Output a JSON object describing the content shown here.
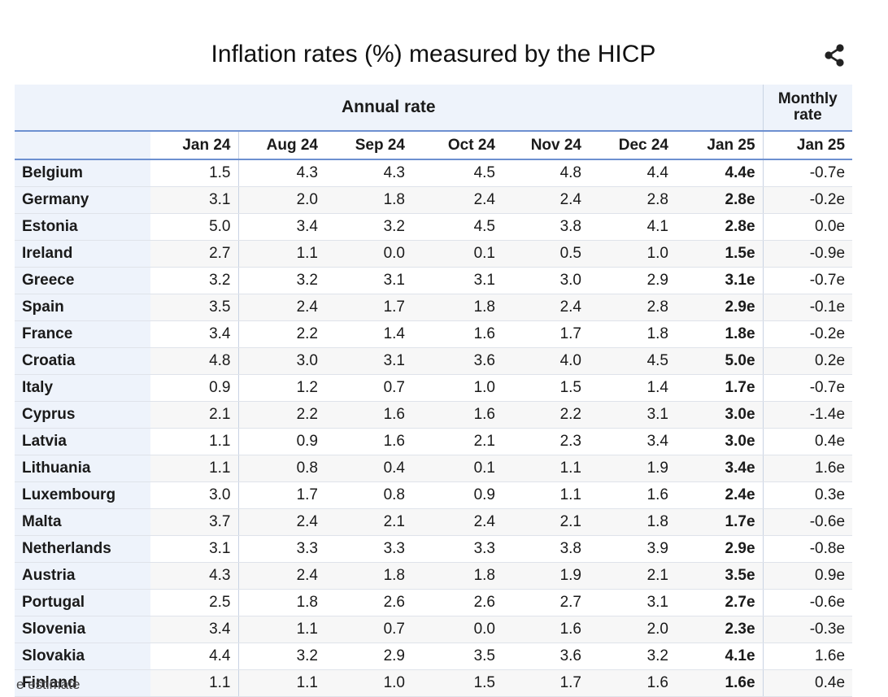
{
  "chart_data": {
    "type": "table",
    "title": "Inflation rates (%) measured by the HICP",
    "group_headers": {
      "annual": "Annual rate",
      "monthly": "Monthly rate"
    },
    "columns": [
      "Jan 24",
      "Aug 24",
      "Sep 24",
      "Oct 24",
      "Nov 24",
      "Dec 24",
      "Jan 25",
      "Jan 25"
    ],
    "rows": [
      {
        "country": "Belgium",
        "values": [
          "1.5",
          "4.3",
          "4.3",
          "4.5",
          "4.8",
          "4.4",
          "4.4e",
          "-0.7e"
        ]
      },
      {
        "country": "Germany",
        "values": [
          "3.1",
          "2.0",
          "1.8",
          "2.4",
          "2.4",
          "2.8",
          "2.8e",
          "-0.2e"
        ]
      },
      {
        "country": "Estonia",
        "values": [
          "5.0",
          "3.4",
          "3.2",
          "4.5",
          "3.8",
          "4.1",
          "2.8e",
          "0.0e"
        ]
      },
      {
        "country": "Ireland",
        "values": [
          "2.7",
          "1.1",
          "0.0",
          "0.1",
          "0.5",
          "1.0",
          "1.5e",
          "-0.9e"
        ]
      },
      {
        "country": "Greece",
        "values": [
          "3.2",
          "3.2",
          "3.1",
          "3.1",
          "3.0",
          "2.9",
          "3.1e",
          "-0.7e"
        ]
      },
      {
        "country": "Spain",
        "values": [
          "3.5",
          "2.4",
          "1.7",
          "1.8",
          "2.4",
          "2.8",
          "2.9e",
          "-0.1e"
        ]
      },
      {
        "country": "France",
        "values": [
          "3.4",
          "2.2",
          "1.4",
          "1.6",
          "1.7",
          "1.8",
          "1.8e",
          "-0.2e"
        ]
      },
      {
        "country": "Croatia",
        "values": [
          "4.8",
          "3.0",
          "3.1",
          "3.6",
          "4.0",
          "4.5",
          "5.0e",
          "0.2e"
        ]
      },
      {
        "country": "Italy",
        "values": [
          "0.9",
          "1.2",
          "0.7",
          "1.0",
          "1.5",
          "1.4",
          "1.7e",
          "-0.7e"
        ]
      },
      {
        "country": "Cyprus",
        "values": [
          "2.1",
          "2.2",
          "1.6",
          "1.6",
          "2.2",
          "3.1",
          "3.0e",
          "-1.4e"
        ]
      },
      {
        "country": "Latvia",
        "values": [
          "1.1",
          "0.9",
          "1.6",
          "2.1",
          "2.3",
          "3.4",
          "3.0e",
          "0.4e"
        ]
      },
      {
        "country": "Lithuania",
        "values": [
          "1.1",
          "0.8",
          "0.4",
          "0.1",
          "1.1",
          "1.9",
          "3.4e",
          "1.6e"
        ]
      },
      {
        "country": "Luxembourg",
        "values": [
          "3.0",
          "1.7",
          "0.8",
          "0.9",
          "1.1",
          "1.6",
          "2.4e",
          "0.3e"
        ]
      },
      {
        "country": "Malta",
        "values": [
          "3.7",
          "2.4",
          "2.1",
          "2.4",
          "2.1",
          "1.8",
          "1.7e",
          "-0.6e"
        ]
      },
      {
        "country": "Netherlands",
        "values": [
          "3.1",
          "3.3",
          "3.3",
          "3.3",
          "3.8",
          "3.9",
          "2.9e",
          "-0.8e"
        ]
      },
      {
        "country": "Austria",
        "values": [
          "4.3",
          "2.4",
          "1.8",
          "1.8",
          "1.9",
          "2.1",
          "3.5e",
          "0.9e"
        ]
      },
      {
        "country": "Portugal",
        "values": [
          "2.5",
          "1.8",
          "2.6",
          "2.6",
          "2.7",
          "3.1",
          "2.7e",
          "-0.6e"
        ]
      },
      {
        "country": "Slovenia",
        "values": [
          "3.4",
          "1.1",
          "0.7",
          "0.0",
          "1.6",
          "2.0",
          "2.3e",
          "-0.3e"
        ]
      },
      {
        "country": "Slovakia",
        "values": [
          "4.4",
          "3.2",
          "2.9",
          "3.5",
          "3.6",
          "3.2",
          "4.1e",
          "1.6e"
        ]
      },
      {
        "country": "Finland",
        "values": [
          "1.1",
          "1.1",
          "1.0",
          "1.5",
          "1.7",
          "1.6",
          "1.6e",
          "0.4e"
        ]
      }
    ],
    "footnote": "e estimate"
  },
  "icons": {
    "share": "share-icon"
  },
  "colors": {
    "header_bg": "#eef3fb",
    "accent_line": "#6d90d0",
    "zebra": "#f7f7f7"
  }
}
